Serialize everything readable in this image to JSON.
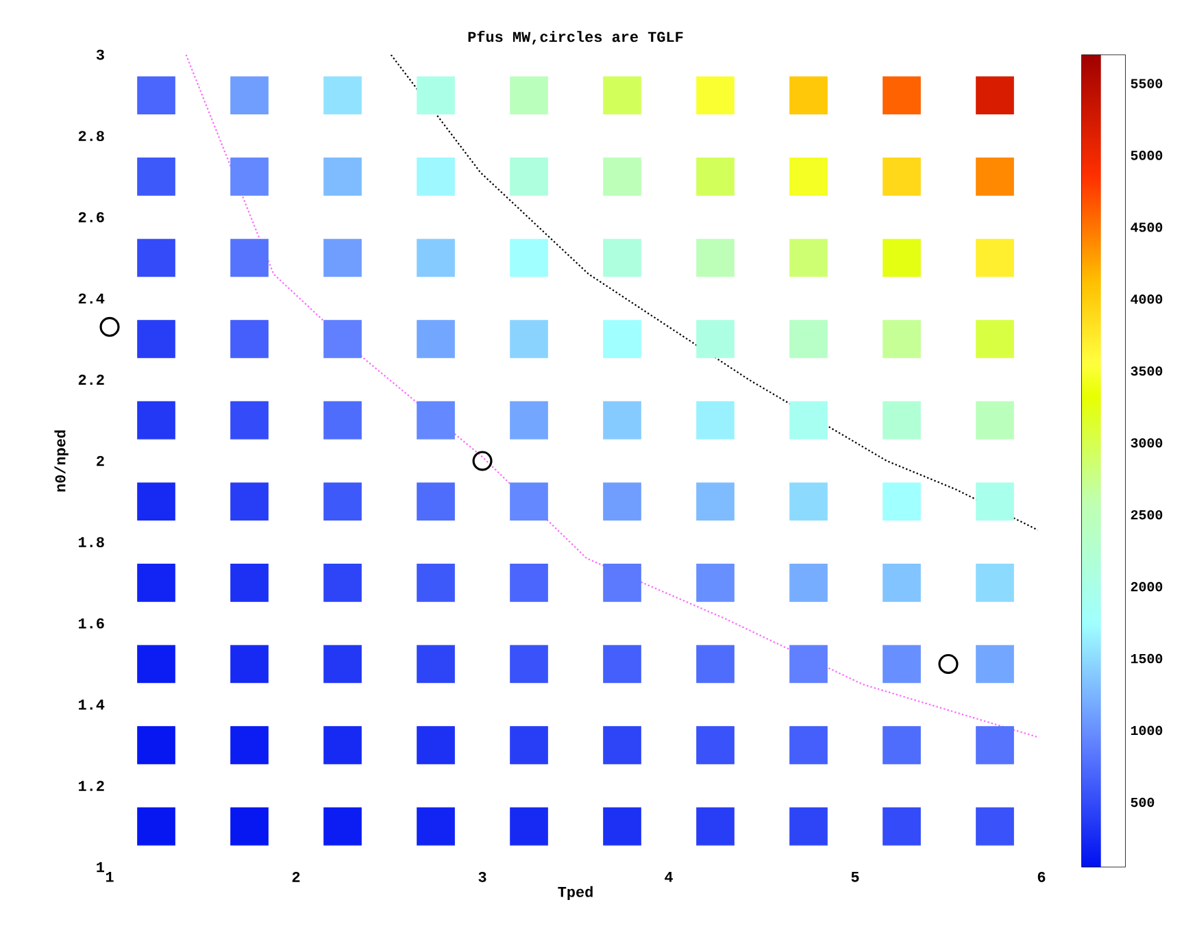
{
  "chart_data": {
    "type": "scatter",
    "title": "Pfus MW,circles are TGLF",
    "xlabel": "Tped",
    "ylabel": "n0/nped",
    "xlim": [
      1,
      6
    ],
    "ylim": [
      1,
      3
    ],
    "xticks": [
      1,
      2,
      3,
      4,
      5,
      6
    ],
    "yticks": [
      1,
      1.2,
      1.4,
      1.6,
      1.8,
      2,
      2.2,
      2.4,
      2.6,
      2.8,
      3
    ],
    "clim": [
      50,
      5700
    ],
    "cticks": [
      500,
      1000,
      1500,
      2000,
      2500,
      3000,
      3500,
      4000,
      4500,
      5000,
      5500
    ],
    "series": [
      {
        "marker": "square",
        "colors": [
          "#4a66fc",
          "#6f9eff",
          "#91e2ff",
          "#aaffe7",
          "#bbffbd",
          "#d3ff5a",
          "#faff31",
          "#ffc808",
          "#ff6200",
          "#d81c00",
          "#3e59fa",
          "#6488ff",
          "#7ebcff",
          "#9df8ff",
          "#adffde",
          "#bdffb9",
          "#d3ff5a",
          "#f5ff23",
          "#ffd819",
          "#ff8900",
          "#334bf8",
          "#5573fd",
          "#6f9eff",
          "#86cbff",
          "#a0ffff",
          "#adffde",
          "#bdffb9",
          "#ceff72",
          "#e4ff12",
          "#ffef2f",
          "#283ef6",
          "#445ffb",
          "#6080ff",
          "#73a6ff",
          "#8ad3ff",
          "#a0ffff",
          "#acffe3",
          "#b7ffc7",
          "#c6ff96",
          "#d9ff42",
          "#2238f5",
          "#334bf8",
          "#4f6dfc",
          "#6488ff",
          "#73a6ff",
          "#86cbff",
          "#99f1ff",
          "#a6fff1",
          "#b1ffd5",
          "#bbffbd",
          "#172af4",
          "#283ef6",
          "#3e59fa",
          "#4f6dfc",
          "#6488ff",
          "#6f9eff",
          "#7ebcff",
          "#8ddaff",
          "#a0ffff",
          "#a8ffec",
          "#1124f3",
          "#1c31f4",
          "#2d45f7",
          "#3e59fa",
          "#4a66fc",
          "#5b7afe",
          "#688fff",
          "#77adff",
          "#82c4ff",
          "#8ddaff",
          "#0b1df2",
          "#172af4",
          "#2238f5",
          "#2d45f7",
          "#3952f9",
          "#445ffb",
          "#4f6dfc",
          "#6080ff",
          "#688fff",
          "#73a6ff",
          "#0617f1",
          "#0b1df2",
          "#172af4",
          "#1c31f4",
          "#283ef6",
          "#2d45f7",
          "#3952f9",
          "#445ffb",
          "#4f6dfc",
          "#5573fd",
          "#0617f1",
          "#0617f1",
          "#0b1df2",
          "#1124f3",
          "#172af4",
          "#1c31f4",
          "#283ef6",
          "#2d45f7",
          "#334bf8",
          "#3952f9"
        ],
        "x": [
          1.25,
          1.75,
          2.25,
          2.75,
          3.25,
          3.75,
          4.25,
          4.75,
          5.25,
          5.75,
          1.25,
          1.75,
          2.25,
          2.75,
          3.25,
          3.75,
          4.25,
          4.75,
          5.25,
          5.75,
          1.25,
          1.75,
          2.25,
          2.75,
          3.25,
          3.75,
          4.25,
          4.75,
          5.25,
          5.75,
          1.25,
          1.75,
          2.25,
          2.75,
          3.25,
          3.75,
          4.25,
          4.75,
          5.25,
          5.75,
          1.25,
          1.75,
          2.25,
          2.75,
          3.25,
          3.75,
          4.25,
          4.75,
          5.25,
          5.75,
          1.25,
          1.75,
          2.25,
          2.75,
          3.25,
          3.75,
          4.25,
          4.75,
          5.25,
          5.75,
          1.25,
          1.75,
          2.25,
          2.75,
          3.25,
          3.75,
          4.25,
          4.75,
          5.25,
          5.75,
          1.25,
          1.75,
          2.25,
          2.75,
          3.25,
          3.75,
          4.25,
          4.75,
          5.25,
          5.75,
          1.25,
          1.75,
          2.25,
          2.75,
          3.25,
          3.75,
          4.25,
          4.75,
          5.25,
          5.75,
          1.25,
          1.75,
          2.25,
          2.75,
          3.25,
          3.75,
          4.25,
          4.75,
          5.25,
          5.75
        ],
        "values": [
          2.9,
          2.9,
          2.9,
          2.9,
          2.9,
          2.9,
          2.9,
          2.9,
          2.9,
          2.9,
          2.7,
          2.7,
          2.7,
          2.7,
          2.7,
          2.7,
          2.7,
          2.7,
          2.7,
          2.7,
          2.5,
          2.5,
          2.5,
          2.5,
          2.5,
          2.5,
          2.5,
          2.5,
          2.5,
          2.5,
          2.3,
          2.3,
          2.3,
          2.3,
          2.3,
          2.3,
          2.3,
          2.3,
          2.3,
          2.3,
          2.1,
          2.1,
          2.1,
          2.1,
          2.1,
          2.1,
          2.1,
          2.1,
          2.1,
          2.1,
          1.9,
          1.9,
          1.9,
          1.9,
          1.9,
          1.9,
          1.9,
          1.9,
          1.9,
          1.9,
          1.7,
          1.7,
          1.7,
          1.7,
          1.7,
          1.7,
          1.7,
          1.7,
          1.7,
          1.7,
          1.5,
          1.5,
          1.5,
          1.5,
          1.5,
          1.5,
          1.5,
          1.5,
          1.5,
          1.5,
          1.3,
          1.3,
          1.3,
          1.3,
          1.3,
          1.3,
          1.3,
          1.3,
          1.3,
          1.3,
          1.1,
          1.1,
          1.1,
          1.1,
          1.1,
          1.1,
          1.1,
          1.1,
          1.1,
          1.1
        ],
        "cvalues": [
          700,
          1100,
          1550,
          2000,
          2450,
          2950,
          3500,
          4050,
          4600,
          5200,
          600,
          950,
          1300,
          1700,
          2100,
          2500,
          2950,
          3450,
          3900,
          4400,
          500,
          800,
          1100,
          1400,
          1750,
          2100,
          2500,
          2850,
          3250,
          3700,
          400,
          650,
          900,
          1150,
          1450,
          1750,
          2050,
          2350,
          2700,
          3050,
          350,
          500,
          750,
          950,
          1150,
          1400,
          1650,
          1900,
          2200,
          2450,
          250,
          400,
          600,
          750,
          950,
          1100,
          1300,
          1500,
          1750,
          1950,
          200,
          300,
          450,
          600,
          700,
          850,
          1000,
          1200,
          1350,
          1500,
          150,
          250,
          350,
          450,
          550,
          650,
          750,
          900,
          1000,
          1150,
          100,
          150,
          250,
          300,
          400,
          450,
          550,
          650,
          750,
          800,
          100,
          100,
          150,
          200,
          250,
          300,
          400,
          450,
          500,
          550
        ]
      },
      {
        "type": "line",
        "color": "#ff66ff",
        "line_style": "dotted",
        "x": [
          1.41,
          1.88,
          2.37,
          3.0,
          3.56,
          4.31,
          5.04,
          5.98
        ],
        "values": [
          3,
          2.46,
          2.25,
          2.01,
          1.76,
          1.61,
          1.45,
          1.32
        ]
      },
      {
        "type": "line",
        "color": "#000000",
        "line_style": "dotted",
        "x": [
          2.51,
          2.99,
          3.57,
          4.43,
          5.17,
          5.54,
          5.98
        ],
        "values": [
          3,
          2.71,
          2.46,
          2.2,
          2.0,
          1.93,
          1.83
        ]
      },
      {
        "color": "#000000",
        "marker": "circle",
        "x": [
          1,
          3,
          5.5
        ],
        "values": [
          2.33,
          2,
          1.5
        ]
      }
    ]
  }
}
